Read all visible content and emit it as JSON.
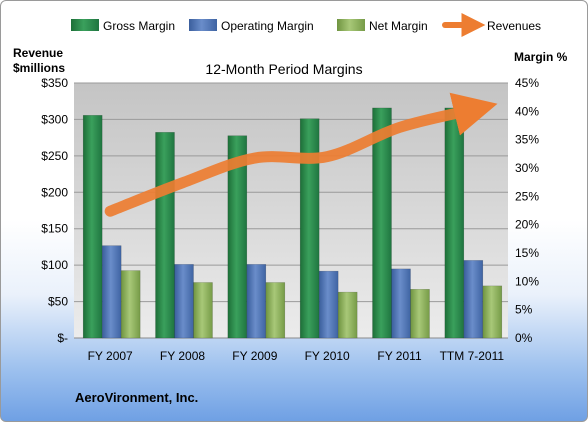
{
  "company_name": "AeroVironment, Inc.",
  "chart_data": {
    "type": "bar",
    "title": "12-Month Period Margins",
    "categories": [
      "FY 2007",
      "FY 2008",
      "FY 2009",
      "FY 2010",
      "FY 2011",
      "TTM 7-2011"
    ],
    "left_axis": {
      "label_line1": "Revenue",
      "label_line2": "$millions",
      "ylim": [
        0,
        350
      ],
      "ticks": [
        0,
        50,
        100,
        150,
        200,
        250,
        300,
        350
      ],
      "tick_labels": [
        "$-",
        "$50",
        "$100",
        "$150",
        "$200",
        "$250",
        "$300",
        "$350"
      ]
    },
    "right_axis": {
      "label": "Margin %",
      "ylim": [
        0,
        45
      ],
      "ticks": [
        0,
        5,
        10,
        15,
        20,
        25,
        30,
        35,
        40,
        45
      ],
      "tick_labels": [
        "0%",
        "5%",
        "10%",
        "15%",
        "20%",
        "25%",
        "30%",
        "35%",
        "40%",
        "45%"
      ]
    },
    "series": [
      {
        "name": "Gross Margin",
        "type": "bar",
        "axis": "right",
        "color": "#2e8b4e",
        "values": [
          39.3,
          36.3,
          35.7,
          38.7,
          40.6,
          40.6
        ]
      },
      {
        "name": "Operating Margin",
        "type": "bar",
        "axis": "right",
        "color": "#4f73b3",
        "values": [
          16.3,
          13.0,
          13.0,
          11.8,
          12.2,
          13.7
        ]
      },
      {
        "name": "Net Margin",
        "type": "bar",
        "axis": "right",
        "color": "#8fb35a",
        "values": [
          11.9,
          9.8,
          9.8,
          8.1,
          8.6,
          9.2
        ]
      },
      {
        "name": "Revenues",
        "type": "line",
        "axis": "left",
        "color": "#ed7d31",
        "values": [
          174,
          213,
          247,
          249,
          289,
          313
        ]
      }
    ],
    "legend_position": "top",
    "grid": true
  }
}
